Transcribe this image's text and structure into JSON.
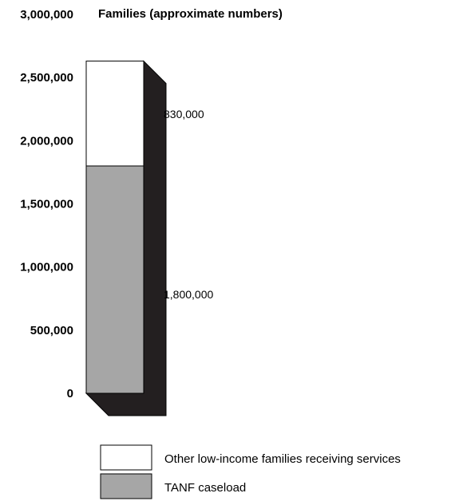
{
  "chart_data": {
    "type": "bar",
    "stacked": true,
    "title": "Families (approximate numbers)",
    "ylim": [
      0,
      3000000
    ],
    "y_ticks": [
      {
        "value": 0,
        "label": "0"
      },
      {
        "value": 500000,
        "label": "500,000"
      },
      {
        "value": 1000000,
        "label": "1,000,000"
      },
      {
        "value": 1500000,
        "label": "1,500,000"
      },
      {
        "value": 2000000,
        "label": "2,000,000"
      },
      {
        "value": 2500000,
        "label": "2,500,000"
      },
      {
        "value": 3000000,
        "label": "3,000,000"
      }
    ],
    "series": [
      {
        "name": "TANF caseload",
        "value": 1800000,
        "label": "1,800,000",
        "color": "#a6a6a6"
      },
      {
        "name": "Other low-income families receiving services",
        "value": 830000,
        "label": "830,000",
        "color": "#ffffff"
      }
    ],
    "legend": [
      {
        "label": "Other low-income families receiving services",
        "color": "#ffffff"
      },
      {
        "label": "TANF caseload",
        "color": "#a6a6a6"
      }
    ],
    "shadow_color": "#231f20",
    "grid": false
  }
}
